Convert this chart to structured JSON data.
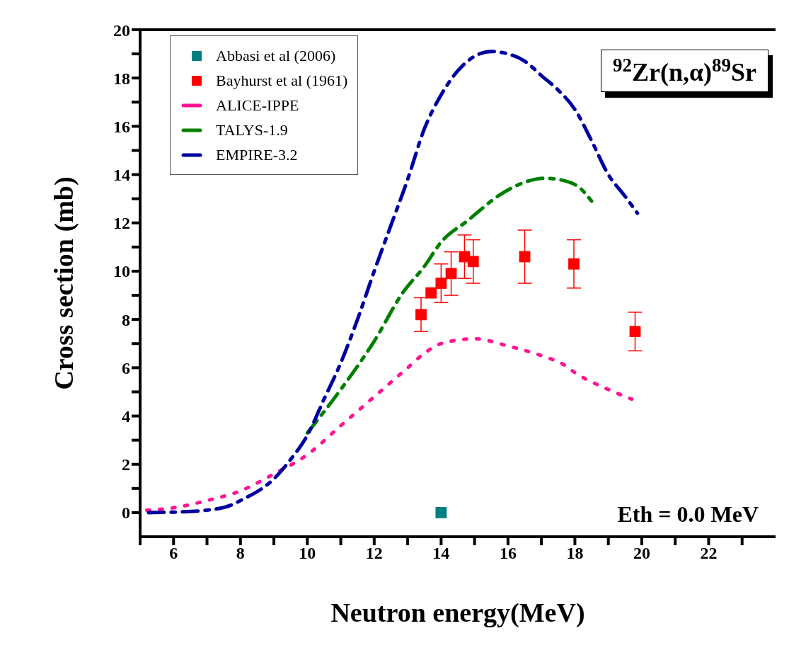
{
  "chart_data": {
    "type": "line",
    "title": "$^{92}$Zr(n,α)$^{89}$Sr",
    "xlabel": "Neutron energy(MeV)",
    "ylabel": "Cross section (mb)",
    "xlim": [
      5,
      24
    ],
    "ylim": [
      -1,
      20
    ],
    "xticks": [
      {
        "value": 5,
        "label": null
      },
      6,
      {
        "value": 7,
        "label": null
      },
      8,
      {
        "value": 9,
        "label": null
      },
      10,
      {
        "value": 11,
        "label": null
      },
      12,
      {
        "value": 13,
        "label": null
      },
      14,
      {
        "value": 15,
        "label": null
      },
      16,
      {
        "value": 17,
        "label": null
      },
      18,
      {
        "value": 19,
        "label": null
      },
      20,
      {
        "value": 21,
        "label": null
      },
      22,
      {
        "value": 23,
        "label": null
      }
    ],
    "yticks": [
      0,
      {
        "value": 1,
        "label": null
      },
      2,
      {
        "value": 3,
        "label": null
      },
      4,
      {
        "value": 5,
        "label": null
      },
      6,
      {
        "value": 7,
        "label": null
      },
      8,
      {
        "value": 9,
        "label": null
      },
      10,
      {
        "value": 11,
        "label": null
      },
      12,
      {
        "value": 13,
        "label": null
      },
      14,
      {
        "value": 15,
        "label": null
      },
      16,
      {
        "value": 17,
        "label": null
      },
      18,
      {
        "value": 19,
        "label": null
      },
      20
    ],
    "legend": "top left",
    "annotations": [
      "Eth = 0.0 MeV"
    ],
    "series": [
      {
        "name": "Abbasi et al (2006)",
        "type": "scatter",
        "marker": "square",
        "color": "#008080",
        "x": [
          14
        ],
        "values": [
          0
        ]
      },
      {
        "name": "Bayhurst et al (1961)",
        "type": "scatter",
        "marker": "square",
        "color": "#ff0000",
        "x": [
          13.4,
          13.7,
          14.0,
          14.3,
          14.7,
          14.96,
          16.5,
          17.97,
          19.8
        ],
        "values": [
          8.2,
          9.1,
          9.5,
          9.9,
          10.6,
          10.4,
          10.6,
          10.3,
          7.5
        ],
        "errors": [
          [
            7.5,
            8.9
          ],
          null,
          [
            8.7,
            10.3
          ],
          [
            9.0,
            10.8
          ],
          [
            9.7,
            11.5
          ],
          [
            9.5,
            11.3
          ],
          [
            9.5,
            11.7
          ],
          [
            9.3,
            11.3
          ],
          [
            6.7,
            8.3
          ]
        ]
      },
      {
        "name": "ALICE-IPPE",
        "line_style": "dotted",
        "color": "#ff1493",
        "x": [
          5.2,
          6,
          7,
          8,
          9,
          10,
          11,
          12,
          13,
          13.5,
          14,
          15,
          16,
          17,
          17.7,
          18,
          19,
          19.7
        ],
        "values": [
          0.1,
          0.2,
          0.5,
          0.9,
          1.6,
          2.4,
          3.6,
          4.8,
          6.0,
          6.6,
          7.0,
          7.2,
          6.9,
          6.5,
          6.1,
          5.8,
          5.1,
          4.7
        ]
      },
      {
        "name": "TALYS-1.9",
        "line_style": "dashed",
        "color": "#008000",
        "x": [
          10,
          11,
          12,
          12.85,
          13.5,
          14,
          14.8,
          15.8,
          16.8,
          17.1,
          17.5,
          18.1,
          18.5
        ],
        "values": [
          3.3,
          5.1,
          7.1,
          9.1,
          10.2,
          11.2,
          12.1,
          13.2,
          13.8,
          13.85,
          13.8,
          13.5,
          12.9
        ]
      },
      {
        "name": "EMPIRE-3.2",
        "line_style": "dashed",
        "color": "#00009f",
        "x": [
          5.25,
          6,
          7,
          7.7,
          8,
          9,
          9.5,
          10,
          10.5,
          11,
          11.5,
          12,
          12.5,
          13,
          13.5,
          14,
          14.5,
          15,
          15.5,
          16,
          16.5,
          17,
          17.5,
          18,
          18.5,
          19,
          19.5,
          19.87
        ],
        "values": [
          0,
          0.02,
          0.1,
          0.3,
          0.5,
          1.4,
          2.2,
          3.2,
          4.7,
          6.2,
          8.0,
          10.0,
          11.9,
          13.8,
          15.9,
          17.3,
          18.3,
          18.9,
          19.1,
          19.0,
          18.7,
          18.1,
          17.5,
          16.7,
          15.4,
          14.0,
          13.1,
          12.4
        ]
      }
    ]
  }
}
